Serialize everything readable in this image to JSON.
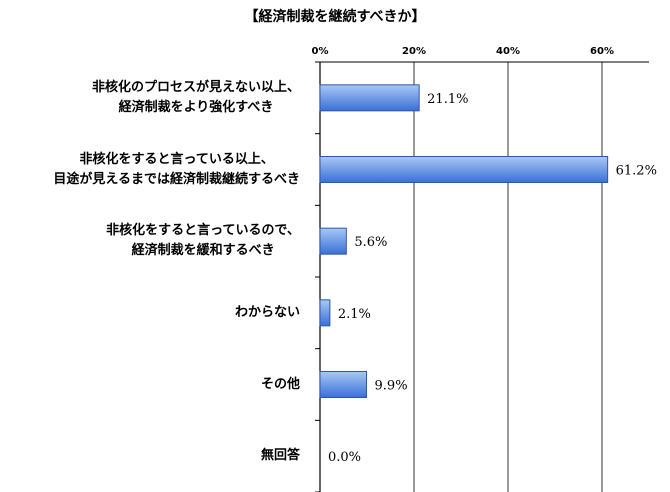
{
  "chart_data": {
    "type": "bar",
    "orientation": "horizontal",
    "title": "【経済制裁を継続すべきか】",
    "categories": [
      "非核化のプロセスが見えない以上、\n経済制裁をより強化すべき",
      "非核化をすると言っている以上、\n目途が見えるまでは経済制裁継続するべき",
      "非核化をすると言っているので、\n経済制裁を緩和するべき",
      "わからない",
      "その他",
      "無回答"
    ],
    "values": [
      21.1,
      61.2,
      5.6,
      2.1,
      9.9,
      0.0
    ],
    "value_labels": [
      "21.1%",
      "61.2%",
      "5.6%",
      "2.1%",
      "9.9%",
      "0.0%"
    ],
    "x_ticks": [
      "0%",
      "20%",
      "40%",
      "60%"
    ],
    "xlim": [
      0,
      70
    ],
    "x_axis_position": "top",
    "grid": true,
    "legend": "none",
    "colors": {
      "bar_fill_light": "#a9c8f5",
      "bar_fill_dark": "#3a6fd8",
      "bar_stroke": "#2f57a8",
      "grid": "#000000"
    }
  }
}
